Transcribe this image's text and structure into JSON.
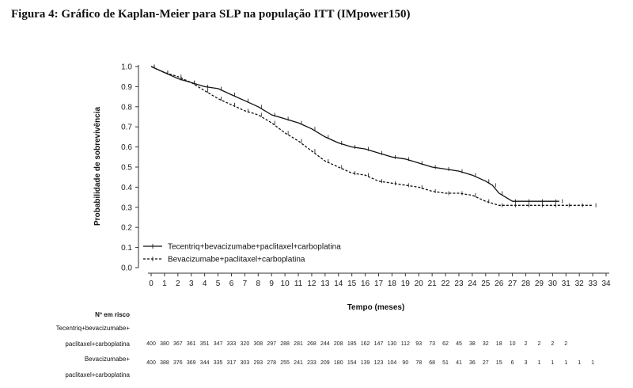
{
  "figure_title": "Figura 4: Gráfico de Kaplan-Meier para SLP na população ITT (IMpower150)",
  "chart_data": {
    "type": "line",
    "title": "",
    "xlabel": "Tempo (meses)",
    "ylabel": "Probabilidade de sobrevivência",
    "xlim": [
      0,
      34
    ],
    "ylim": [
      0.0,
      1.0
    ],
    "x_ticks": [
      0,
      1,
      2,
      3,
      4,
      5,
      6,
      7,
      8,
      9,
      10,
      11,
      12,
      13,
      14,
      15,
      16,
      17,
      18,
      19,
      20,
      21,
      22,
      23,
      24,
      25,
      26,
      27,
      28,
      29,
      30,
      31,
      32,
      33,
      34
    ],
    "y_ticks": [
      0.0,
      0.1,
      0.2,
      0.3,
      0.4,
      0.5,
      0.6,
      0.7,
      0.8,
      0.9,
      1.0
    ],
    "grid": false,
    "legend_position": "bottom-left",
    "series": [
      {
        "name": "Tecentriq+bevacizumabe+paclitaxel+carboplatina",
        "style": "solid",
        "x": [
          0,
          1,
          2,
          3,
          4,
          5,
          6,
          7,
          8,
          9,
          10,
          11,
          12,
          13,
          14,
          15,
          16,
          17,
          18,
          19,
          20,
          21,
          22,
          23,
          24,
          25,
          25.5,
          26,
          27,
          28,
          29,
          30,
          30.5
        ],
        "y": [
          1.0,
          0.97,
          0.94,
          0.92,
          0.9,
          0.89,
          0.86,
          0.83,
          0.8,
          0.76,
          0.74,
          0.72,
          0.69,
          0.65,
          0.62,
          0.6,
          0.59,
          0.57,
          0.55,
          0.54,
          0.52,
          0.5,
          0.49,
          0.48,
          0.46,
          0.43,
          0.41,
          0.37,
          0.33,
          0.33,
          0.33,
          0.33,
          0.33
        ]
      },
      {
        "name": "Bevacizumabe+paclitaxel+carboplatina",
        "style": "dashed",
        "x": [
          0,
          1,
          2,
          3,
          4,
          5,
          6,
          7,
          8,
          9,
          10,
          11,
          12,
          13,
          14,
          15,
          16,
          17,
          18,
          19,
          20,
          21,
          22,
          23,
          24,
          25,
          26,
          27,
          28,
          29,
          30,
          31,
          32,
          33
        ],
        "y": [
          1.0,
          0.97,
          0.95,
          0.92,
          0.88,
          0.84,
          0.81,
          0.78,
          0.76,
          0.72,
          0.67,
          0.63,
          0.58,
          0.53,
          0.5,
          0.47,
          0.46,
          0.43,
          0.42,
          0.41,
          0.4,
          0.38,
          0.37,
          0.37,
          0.36,
          0.33,
          0.31,
          0.31,
          0.31,
          0.31,
          0.31,
          0.31,
          0.31,
          0.31
        ]
      }
    ],
    "risk_table": {
      "header": "Nº em risco",
      "rows": [
        {
          "label_line1": "Tecentriq+bevacizumabe+",
          "label_line2": "paclitaxel+carboplatina",
          "values": [
            "400",
            "380",
            "367",
            "361",
            "351",
            "347",
            "333",
            "320",
            "308",
            "297",
            "288",
            "281",
            "268",
            "244",
            "208",
            "185",
            "162",
            "147",
            "130",
            "112",
            "93",
            "73",
            "62",
            "45",
            "38",
            "32",
            "18",
            "10",
            "2",
            "2",
            "2",
            "2"
          ]
        },
        {
          "label_line1": "Bevacizumabe+",
          "label_line2": "paclitaxel+carboplatina",
          "values": [
            "400",
            "388",
            "376",
            "369",
            "344",
            "335",
            "317",
            "303",
            "293",
            "278",
            "255",
            "241",
            "233",
            "209",
            "180",
            "154",
            "139",
            "123",
            "104",
            "90",
            "78",
            "68",
            "51",
            "41",
            "36",
            "27",
            "15",
            "6",
            "3",
            "1",
            "1",
            "1",
            "1",
            "1"
          ]
        }
      ]
    }
  }
}
